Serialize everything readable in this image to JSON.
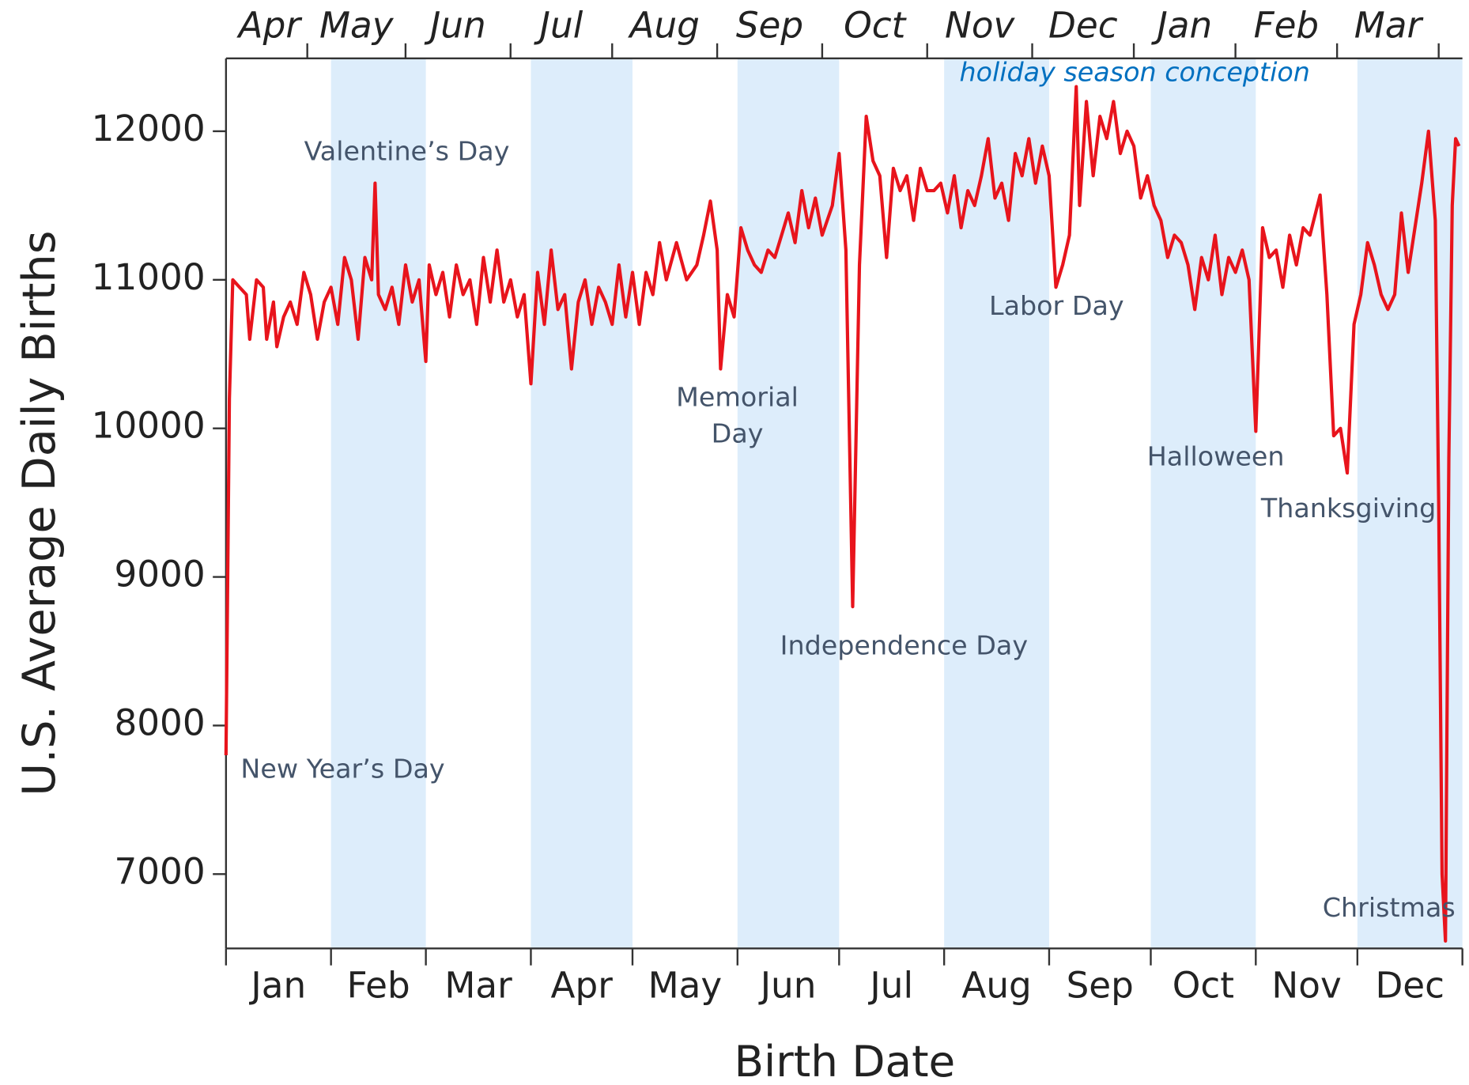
{
  "chart_data": {
    "type": "line",
    "y_label": "U.S. Average Daily Births",
    "x_label": "Birth Date",
    "x": [
      1,
      2,
      3,
      5,
      7,
      8,
      10,
      12,
      13,
      15,
      16,
      18,
      20,
      22,
      24,
      26,
      28,
      30,
      32,
      34,
      36,
      38,
      40,
      42,
      44,
      45,
      46,
      48,
      50,
      52,
      54,
      56,
      58,
      60,
      61,
      63,
      65,
      67,
      69,
      71,
      73,
      75,
      77,
      79,
      81,
      83,
      85,
      87,
      89,
      91,
      93,
      95,
      97,
      99,
      101,
      103,
      105,
      107,
      109,
      111,
      113,
      115,
      117,
      119,
      121,
      123,
      125,
      127,
      129,
      131,
      134,
      137,
      140,
      142,
      144,
      146,
      147,
      149,
      151,
      153,
      155,
      157,
      159,
      161,
      163,
      165,
      167,
      169,
      171,
      173,
      175,
      177,
      180,
      182,
      184,
      186,
      188,
      190,
      192,
      194,
      196,
      198,
      200,
      202,
      204,
      206,
      208,
      210,
      212,
      214,
      216,
      218,
      220,
      222,
      224,
      226,
      228,
      230,
      232,
      234,
      236,
      238,
      240,
      242,
      244,
      246,
      248,
      250,
      252,
      253,
      255,
      257,
      259,
      261,
      263,
      265,
      267,
      269,
      271,
      273,
      275,
      277,
      279,
      281,
      283,
      285,
      287,
      289,
      291,
      293,
      295,
      297,
      299,
      301,
      303,
      305,
      307,
      309,
      311,
      313,
      315,
      317,
      319,
      321,
      324,
      326,
      328,
      330,
      332,
      334,
      336,
      338,
      340,
      342,
      344,
      346,
      348,
      350,
      352,
      354,
      356,
      358,
      359,
      360,
      361,
      362,
      363,
      364,
      365
    ],
    "series": [
      {
        "name": "U.S. Average Daily Births",
        "color": "#e8141c",
        "values": [
          7800,
          10200,
          11000,
          10950,
          10900,
          10600,
          11000,
          10950,
          10600,
          10850,
          10550,
          10750,
          10850,
          10700,
          11050,
          10900,
          10600,
          10850,
          10950,
          10700,
          11150,
          11000,
          10600,
          11150,
          11000,
          11650,
          10900,
          10800,
          10950,
          10700,
          11100,
          10850,
          11000,
          10450,
          11100,
          10900,
          11050,
          10750,
          11100,
          10900,
          11000,
          10700,
          11150,
          10850,
          11200,
          10850,
          11000,
          10750,
          10900,
          10300,
          11050,
          10700,
          11200,
          10800,
          10900,
          10400,
          10850,
          11000,
          10700,
          10950,
          10850,
          10700,
          11100,
          10750,
          11050,
          10700,
          11050,
          10900,
          11250,
          11000,
          11250,
          11000,
          11100,
          11300,
          11530,
          11200,
          10400,
          10900,
          10750,
          11350,
          11200,
          11100,
          11050,
          11200,
          11150,
          11300,
          11450,
          11250,
          11600,
          11350,
          11550,
          11300,
          11500,
          11850,
          11200,
          8800,
          11100,
          12100,
          11800,
          11700,
          11150,
          11750,
          11600,
          11700,
          11400,
          11750,
          11600,
          11600,
          11650,
          11450,
          11700,
          11350,
          11600,
          11500,
          11700,
          11950,
          11550,
          11650,
          11400,
          11850,
          11700,
          11950,
          11650,
          11900,
          11700,
          10950,
          11100,
          11300,
          12300,
          11500,
          12200,
          11700,
          12100,
          11950,
          12200,
          11850,
          12000,
          11900,
          11550,
          11700,
          11500,
          11400,
          11150,
          11300,
          11250,
          11100,
          10800,
          11150,
          11000,
          11300,
          10900,
          11150,
          11050,
          11200,
          11000,
          9980,
          11350,
          11150,
          11200,
          10950,
          11300,
          11100,
          11350,
          11300,
          11570,
          10900,
          9950,
          10000,
          9700,
          10700,
          10900,
          11250,
          11100,
          10900,
          10800,
          10900,
          11450,
          11050,
          11350,
          11650,
          12000,
          11400,
          9500,
          7000,
          6550,
          9800,
          11500,
          11950,
          11900
        ]
      }
    ],
    "xlim": [
      1,
      366
    ],
    "xticks": [
      1,
      32,
      60,
      91,
      121,
      152,
      182,
      213,
      244,
      274,
      305,
      335,
      366
    ],
    "x_categories": [
      "Jan",
      "Feb",
      "Mar",
      "Apr",
      "May",
      "Jun",
      "Jul",
      "Aug",
      "Sep",
      "Oct",
      "Nov",
      "Dec"
    ],
    "x2ticks": [
      25,
      54,
      85,
      115,
      146,
      177,
      208,
      239,
      269,
      299,
      329,
      359
    ],
    "x2_categories": [
      "Apr",
      "May",
      "Jun",
      "Jul",
      "Aug",
      "Sep",
      "Oct",
      "Nov",
      "Dec",
      "Jan",
      "Feb",
      "Mar"
    ],
    "ylim": [
      6500,
      12490
    ],
    "yticks": [
      7000,
      8000,
      9000,
      10000,
      11000,
      12000
    ],
    "band_color": "#ddedfb",
    "annotations": [
      {
        "lines": [
          "Valentine’s Day"
        ]
      },
      {
        "lines": [
          "New Year’s Day"
        ]
      },
      {
        "lines": [
          "Memorial",
          "Day"
        ]
      },
      {
        "lines": [
          "Independence Day"
        ]
      },
      {
        "lines": [
          "Labor Day"
        ]
      },
      {
        "lines": [
          "Halloween"
        ]
      },
      {
        "lines": [
          "Thanksgiving"
        ]
      },
      {
        "lines": [
          "Christmas"
        ]
      },
      {
        "lines": [
          "holiday season conception"
        ],
        "color": "#0070c0",
        "italic": true
      }
    ]
  }
}
